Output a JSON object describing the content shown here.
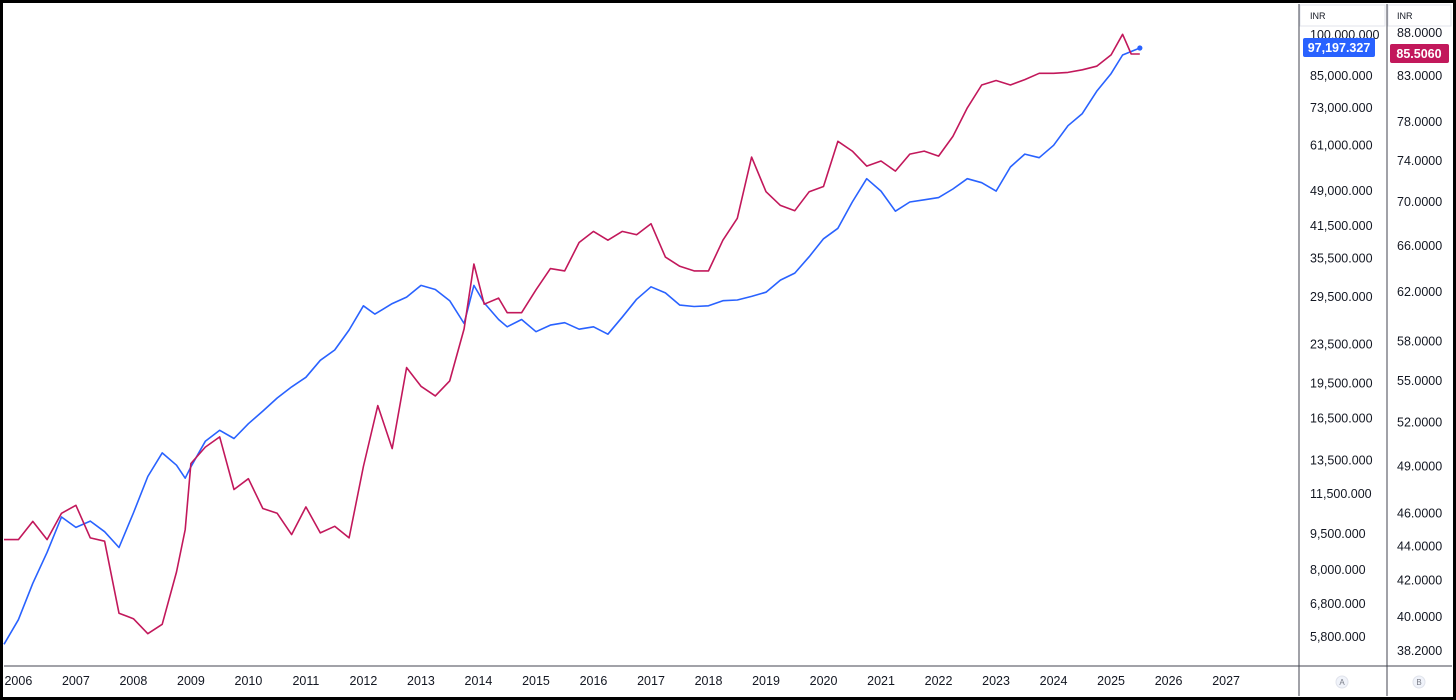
{
  "chart_data": {
    "type": "line",
    "x_axis": {
      "tick_labels": [
        "2006",
        "2007",
        "2008",
        "2009",
        "2010",
        "2011",
        "2012",
        "2013",
        "2014",
        "2015",
        "2016",
        "2017",
        "2018",
        "2019",
        "2020",
        "2021",
        "2022",
        "2023",
        "2024",
        "2025",
        "2026",
        "2027"
      ],
      "range": [
        2005.75,
        2028.25
      ]
    },
    "axes": {
      "left": {
        "currency": "INR",
        "scale": "log",
        "tick_labels": [
          "100,000.000",
          "85,000.000",
          "73,000.000",
          "61,000.000",
          "49,000.000",
          "41,500.000",
          "35,500.000",
          "29,500.000",
          "23,500.000",
          "19,500.000",
          "16,500.000",
          "13,500.000",
          "11,500.000",
          "9,500.000",
          "8,000.000",
          "6,800.000",
          "5,800.000"
        ],
        "tick_values": [
          100000,
          85000,
          73000,
          61000,
          49000,
          41500,
          35500,
          29500,
          23500,
          19500,
          16500,
          13500,
          11500,
          9500,
          8000,
          6800,
          5800
        ],
        "pane_label": "A"
      },
      "right": {
        "currency": "INR",
        "scale": "log",
        "tick_labels": [
          "88.0000",
          "83.0000",
          "78.0000",
          "74.0000",
          "70.0000",
          "66.0000",
          "62.0000",
          "58.0000",
          "55.0000",
          "52.0000",
          "49.0000",
          "46.0000",
          "44.0000",
          "42.0000",
          "40.0000",
          "38.2000"
        ],
        "tick_values": [
          88,
          83,
          78,
          74,
          70,
          66,
          62,
          58,
          55,
          52,
          49,
          46,
          44,
          42,
          40,
          38.2
        ],
        "pane_label": "B"
      }
    },
    "series": [
      {
        "axis": "left",
        "color": "#2962ff",
        "last_value_label": "97,197.327",
        "points": [
          [
            2005.75,
            5600
          ],
          [
            2006.0,
            6300
          ],
          [
            2006.25,
            7500
          ],
          [
            2006.5,
            8700
          ],
          [
            2006.75,
            10300
          ],
          [
            2007.0,
            9800
          ],
          [
            2007.25,
            10100
          ],
          [
            2007.5,
            9600
          ],
          [
            2007.75,
            8900
          ],
          [
            2008.0,
            10500
          ],
          [
            2008.25,
            12500
          ],
          [
            2008.5,
            14000
          ],
          [
            2008.75,
            13200
          ],
          [
            2008.9,
            12400
          ],
          [
            2009.0,
            13100
          ],
          [
            2009.25,
            14800
          ],
          [
            2009.5,
            15600
          ],
          [
            2009.75,
            15000
          ],
          [
            2010.0,
            16100
          ],
          [
            2010.25,
            17100
          ],
          [
            2010.5,
            18200
          ],
          [
            2010.75,
            19200
          ],
          [
            2011.0,
            20100
          ],
          [
            2011.25,
            21800
          ],
          [
            2011.5,
            22900
          ],
          [
            2011.75,
            25200
          ],
          [
            2012.0,
            28300
          ],
          [
            2012.2,
            27200
          ],
          [
            2012.5,
            28600
          ],
          [
            2012.75,
            29500
          ],
          [
            2013.0,
            31200
          ],
          [
            2013.25,
            30600
          ],
          [
            2013.5,
            29000
          ],
          [
            2013.75,
            26000
          ],
          [
            2013.92,
            31200
          ],
          [
            2014.1,
            28700
          ],
          [
            2014.35,
            26500
          ],
          [
            2014.5,
            25600
          ],
          [
            2014.75,
            26500
          ],
          [
            2015.0,
            25000
          ],
          [
            2015.25,
            25800
          ],
          [
            2015.5,
            26100
          ],
          [
            2015.75,
            25300
          ],
          [
            2016.0,
            25600
          ],
          [
            2016.25,
            24700
          ],
          [
            2016.5,
            26800
          ],
          [
            2016.75,
            29200
          ],
          [
            2017.0,
            31000
          ],
          [
            2017.25,
            30100
          ],
          [
            2017.5,
            28400
          ],
          [
            2017.75,
            28200
          ],
          [
            2018.0,
            28300
          ],
          [
            2018.25,
            29000
          ],
          [
            2018.5,
            29100
          ],
          [
            2018.75,
            29600
          ],
          [
            2019.0,
            30200
          ],
          [
            2019.25,
            32000
          ],
          [
            2019.5,
            33100
          ],
          [
            2019.75,
            35800
          ],
          [
            2020.0,
            39000
          ],
          [
            2020.25,
            41000
          ],
          [
            2020.5,
            46500
          ],
          [
            2020.75,
            52000
          ],
          [
            2021.0,
            49000
          ],
          [
            2021.25,
            44500
          ],
          [
            2021.5,
            46500
          ],
          [
            2021.75,
            47000
          ],
          [
            2022.0,
            47500
          ],
          [
            2022.25,
            49500
          ],
          [
            2022.5,
            52000
          ],
          [
            2022.75,
            51000
          ],
          [
            2023.0,
            49000
          ],
          [
            2023.25,
            55000
          ],
          [
            2023.5,
            58500
          ],
          [
            2023.75,
            57500
          ],
          [
            2024.0,
            61000
          ],
          [
            2024.25,
            67000
          ],
          [
            2024.5,
            71000
          ],
          [
            2024.75,
            79000
          ],
          [
            2025.0,
            86000
          ],
          [
            2025.2,
            94000
          ],
          [
            2025.5,
            97197.327
          ]
        ]
      },
      {
        "axis": "right",
        "color": "#c2185b",
        "last_value_label": "85.5060",
        "points": [
          [
            2005.75,
            44.4
          ],
          [
            2006.0,
            44.4
          ],
          [
            2006.25,
            45.5
          ],
          [
            2006.5,
            44.4
          ],
          [
            2006.75,
            46.0
          ],
          [
            2007.0,
            46.5
          ],
          [
            2007.25,
            44.5
          ],
          [
            2007.5,
            44.3
          ],
          [
            2007.75,
            40.2
          ],
          [
            2008.0,
            39.9
          ],
          [
            2008.25,
            39.1
          ],
          [
            2008.5,
            39.6
          ],
          [
            2008.75,
            42.5
          ],
          [
            2008.9,
            45.0
          ],
          [
            2009.0,
            49.2
          ],
          [
            2009.25,
            50.3
          ],
          [
            2009.5,
            51.0
          ],
          [
            2009.75,
            47.5
          ],
          [
            2010.0,
            48.2
          ],
          [
            2010.25,
            46.3
          ],
          [
            2010.5,
            46.0
          ],
          [
            2010.75,
            44.7
          ],
          [
            2011.0,
            46.4
          ],
          [
            2011.25,
            44.8
          ],
          [
            2011.5,
            45.2
          ],
          [
            2011.75,
            44.5
          ],
          [
            2012.0,
            49.0
          ],
          [
            2012.25,
            53.2
          ],
          [
            2012.5,
            50.2
          ],
          [
            2012.75,
            56.0
          ],
          [
            2013.0,
            54.6
          ],
          [
            2013.25,
            53.9
          ],
          [
            2013.5,
            55.0
          ],
          [
            2013.75,
            59.0
          ],
          [
            2013.92,
            64.4
          ],
          [
            2014.1,
            61.0
          ],
          [
            2014.35,
            61.5
          ],
          [
            2014.5,
            60.3
          ],
          [
            2014.75,
            60.3
          ],
          [
            2015.0,
            62.2
          ],
          [
            2015.25,
            64.0
          ],
          [
            2015.5,
            63.8
          ],
          [
            2015.75,
            66.3
          ],
          [
            2016.0,
            67.3
          ],
          [
            2016.25,
            66.5
          ],
          [
            2016.5,
            67.3
          ],
          [
            2016.75,
            67.0
          ],
          [
            2017.0,
            68.0
          ],
          [
            2017.25,
            65.0
          ],
          [
            2017.5,
            64.2
          ],
          [
            2017.75,
            63.8
          ],
          [
            2018.0,
            63.8
          ],
          [
            2018.25,
            66.5
          ],
          [
            2018.5,
            68.5
          ],
          [
            2018.75,
            74.4
          ],
          [
            2019.0,
            71.0
          ],
          [
            2019.25,
            69.7
          ],
          [
            2019.5,
            69.2
          ],
          [
            2019.75,
            71.0
          ],
          [
            2020.0,
            71.5
          ],
          [
            2020.25,
            76.0
          ],
          [
            2020.5,
            75.0
          ],
          [
            2020.75,
            73.5
          ],
          [
            2021.0,
            74.0
          ],
          [
            2021.25,
            73.0
          ],
          [
            2021.5,
            74.7
          ],
          [
            2021.75,
            75.0
          ],
          [
            2022.0,
            74.5
          ],
          [
            2022.25,
            76.5
          ],
          [
            2022.5,
            79.5
          ],
          [
            2022.75,
            82.0
          ],
          [
            2023.0,
            82.5
          ],
          [
            2023.25,
            82.0
          ],
          [
            2023.5,
            82.6
          ],
          [
            2023.75,
            83.3
          ],
          [
            2024.0,
            83.3
          ],
          [
            2024.25,
            83.4
          ],
          [
            2024.5,
            83.7
          ],
          [
            2024.75,
            84.1
          ],
          [
            2025.0,
            85.4
          ],
          [
            2025.2,
            87.8
          ],
          [
            2025.35,
            85.5
          ],
          [
            2025.5,
            85.506
          ]
        ]
      }
    ]
  }
}
